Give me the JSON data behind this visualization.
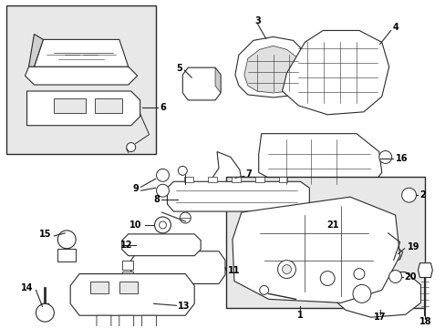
{
  "bg_color": "#ffffff",
  "line_color": "#2a2a2a",
  "label_color": "#000000",
  "box_fill": "#e8e8e8",
  "figsize": [
    4.89,
    3.6
  ],
  "dpi": 100
}
